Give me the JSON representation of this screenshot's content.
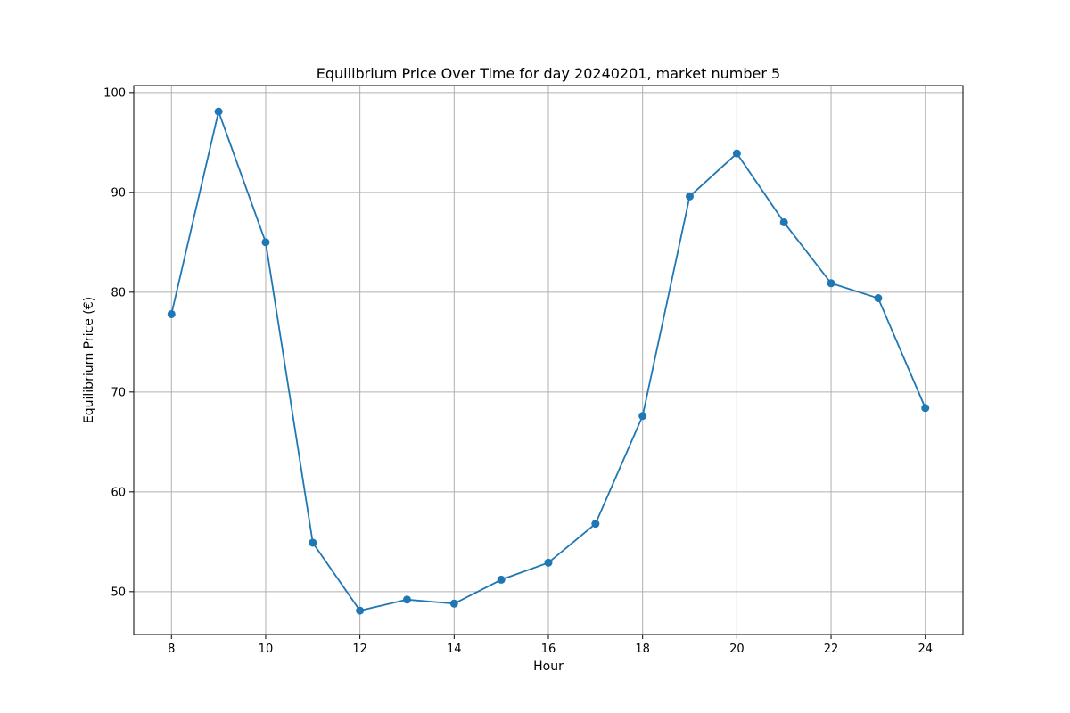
{
  "chart_data": {
    "type": "line",
    "title": "Equilibrium Price Over Time for day 20240201, market number 5",
    "xlabel": "Hour",
    "ylabel": "Equilibrium Price (€)",
    "x": [
      8,
      9,
      10,
      11,
      12,
      13,
      14,
      15,
      16,
      17,
      18,
      19,
      20,
      21,
      22,
      23,
      24
    ],
    "series": [
      {
        "values": [
          77.8,
          98.1,
          85.0,
          54.9,
          48.1,
          49.2,
          48.8,
          51.2,
          52.9,
          56.8,
          67.6,
          89.6,
          93.9,
          87.0,
          80.9,
          79.4,
          68.4
        ],
        "color": "#1f77b4",
        "marker": "circle"
      }
    ],
    "xlim": [
      7.2,
      24.8
    ],
    "ylim": [
      45.7,
      100.7
    ],
    "xticks": [
      8,
      10,
      12,
      14,
      16,
      18,
      20,
      22,
      24
    ],
    "yticks": [
      50,
      60,
      70,
      80,
      90,
      100
    ],
    "grid": true
  }
}
